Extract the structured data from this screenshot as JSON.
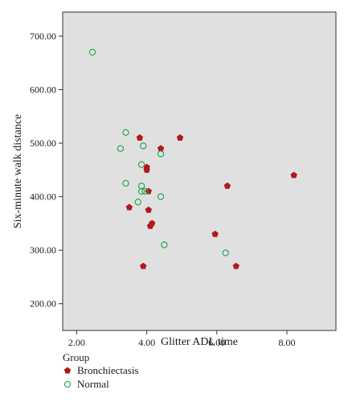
{
  "chart_data": {
    "type": "scatter",
    "xlabel": "Glitter ADL time",
    "ylabel": "Six-minute walk distance",
    "xlim": [
      1.6,
      9.4
    ],
    "ylim": [
      150,
      745
    ],
    "x_ticks": [
      {
        "value": 2,
        "label": "2.00"
      },
      {
        "value": 4,
        "label": "4.00"
      },
      {
        "value": 6,
        "label": "6.00"
      },
      {
        "value": 8,
        "label": "8.00"
      }
    ],
    "y_ticks": [
      {
        "value": 200,
        "label": "200.00"
      },
      {
        "value": 300,
        "label": "300.00"
      },
      {
        "value": 400,
        "label": "400.00"
      },
      {
        "value": 500,
        "label": "500.00"
      },
      {
        "value": 600,
        "label": "600.00"
      },
      {
        "value": 700,
        "label": "700.00"
      }
    ],
    "plot_background": "#e0e0e0",
    "grid": false,
    "legend": {
      "title": "Group",
      "placement": "bottom-left",
      "entries": [
        {
          "name": "Bronchiectasis",
          "color": "#b01a1a",
          "marker": "filled-pentagon"
        },
        {
          "name": "Normal",
          "color": "#1aa34a",
          "marker": "open-circle"
        }
      ]
    },
    "series": [
      {
        "name": "Bronchiectasis",
        "color": "#b01a1a",
        "marker": "filled-pentagon",
        "points": [
          {
            "x": 3.8,
            "y": 510
          },
          {
            "x": 4.4,
            "y": 490
          },
          {
            "x": 4.95,
            "y": 510
          },
          {
            "x": 4.0,
            "y": 455
          },
          {
            "x": 4.0,
            "y": 450
          },
          {
            "x": 4.05,
            "y": 410
          },
          {
            "x": 3.5,
            "y": 380
          },
          {
            "x": 4.05,
            "y": 375
          },
          {
            "x": 4.15,
            "y": 350
          },
          {
            "x": 4.1,
            "y": 345
          },
          {
            "x": 3.9,
            "y": 270
          },
          {
            "x": 5.95,
            "y": 330
          },
          {
            "x": 6.3,
            "y": 420
          },
          {
            "x": 6.55,
            "y": 270
          },
          {
            "x": 8.2,
            "y": 440
          }
        ]
      },
      {
        "name": "Normal",
        "color": "#1aa34a",
        "marker": "open-circle",
        "points": [
          {
            "x": 2.45,
            "y": 670
          },
          {
            "x": 3.4,
            "y": 520
          },
          {
            "x": 3.25,
            "y": 490
          },
          {
            "x": 3.9,
            "y": 495
          },
          {
            "x": 4.4,
            "y": 480
          },
          {
            "x": 3.85,
            "y": 460
          },
          {
            "x": 3.4,
            "y": 425
          },
          {
            "x": 3.85,
            "y": 420
          },
          {
            "x": 3.85,
            "y": 410
          },
          {
            "x": 3.95,
            "y": 410
          },
          {
            "x": 3.75,
            "y": 390
          },
          {
            "x": 4.4,
            "y": 400
          },
          {
            "x": 4.5,
            "y": 310
          },
          {
            "x": 6.25,
            "y": 295
          }
        ]
      }
    ]
  }
}
